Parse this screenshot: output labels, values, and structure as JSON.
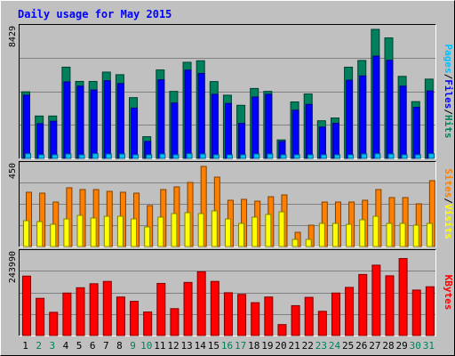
{
  "chart_data": {
    "type": "bar",
    "title": "Daily usage for May 2015",
    "colors": {
      "background": "#c0c0c0",
      "title": "#0000ff",
      "hits": "#00805c",
      "files": "#0000ff",
      "pages": "#00c0ff",
      "visits": "#ffff00",
      "sites": "#ff8000",
      "kbytes": "#ff0000",
      "weekday_label": "#000000",
      "weekend_label": "#00805c"
    },
    "categories": [
      "1",
      "2",
      "3",
      "4",
      "5",
      "6",
      "7",
      "8",
      "9",
      "10",
      "11",
      "12",
      "13",
      "14",
      "15",
      "16",
      "17",
      "18",
      "19",
      "20",
      "21",
      "22",
      "23",
      "24",
      "25",
      "26",
      "27",
      "28",
      "29",
      "30",
      "31"
    ],
    "weekend_days": [
      "2",
      "3",
      "9",
      "10",
      "16",
      "17",
      "23",
      "24",
      "30",
      "31"
    ],
    "panels": [
      {
        "id": "hits",
        "scale_label": "8429",
        "ymax": 8429,
        "axis_labels": [
          {
            "text": "Pages",
            "color": "#00c0ff"
          },
          {
            "text": "/",
            "color": "#000000"
          },
          {
            "text": "Files",
            "color": "#0000ff"
          },
          {
            "text": "/",
            "color": "#000000"
          },
          {
            "text": "Hits",
            "color": "#00805c"
          }
        ],
        "series": [
          {
            "name": "Hits",
            "values": [
              4350,
              2770,
              2770,
              5960,
              5030,
              5030,
              5640,
              5470,
              3970,
              1420,
              5780,
              4380,
              6280,
              6380,
              5020,
              4130,
              3470,
              4570,
              4380,
              1210,
              3690,
              4210,
              2460,
              2640,
              5960,
              6400,
              8429,
              7870,
              5360,
              3710,
              5180
            ]
          },
          {
            "name": "Files",
            "values": [
              4130,
              2270,
              2430,
              5000,
              4720,
              4470,
              5080,
              4890,
              3290,
              1110,
              5140,
              3620,
              5770,
              5550,
              4190,
              3590,
              2290,
              4010,
              4190,
              1110,
              3150,
              3530,
              2050,
              2290,
              5110,
              5390,
              6680,
              6410,
              4720,
              3340,
              4410
            ]
          },
          {
            "name": "Pages",
            "values": [
              310,
              240,
              240,
              290,
              240,
              310,
              290,
              290,
              240,
              240,
              290,
              240,
              310,
              290,
              240,
              240,
              240,
              290,
              290,
              240,
              240,
              240,
              240,
              240,
              240,
              290,
              310,
              290,
              240,
              240,
              310
            ]
          }
        ]
      },
      {
        "id": "visits",
        "scale_label": "450",
        "ymax": 450,
        "axis_labels": [
          {
            "text": "Sites",
            "color": "#ff8000"
          },
          {
            "text": "/",
            "color": "#000000"
          },
          {
            "text": "Visits",
            "color": "#ffff00"
          }
        ],
        "series": [
          {
            "name": "Sites",
            "values": [
              305,
              300,
              250,
              330,
              320,
              320,
              310,
              305,
              300,
              230,
              320,
              335,
              360,
              450,
              390,
              260,
              265,
              255,
              280,
              290,
              80,
              120,
              250,
              250,
              250,
              260,
              320,
              275,
              275,
              240,
              370
            ]
          },
          {
            "name": "Visits",
            "values": [
              145,
              140,
              125,
              155,
              175,
              160,
              170,
              170,
              155,
              110,
              165,
              185,
              190,
              185,
              200,
              155,
              130,
              165,
              180,
              195,
              40,
              40,
              130,
              130,
              125,
              150,
              170,
              130,
              130,
              120,
              130
            ]
          }
        ]
      },
      {
        "id": "kbytes",
        "scale_label": "243990",
        "ymax": 243990,
        "axis_labels": [
          {
            "text": "KBytes",
            "color": "#ff0000"
          }
        ],
        "series": [
          {
            "name": "KBytes",
            "values": [
              179000,
              112000,
              70000,
              128000,
              144000,
              156000,
              163000,
              116000,
              103000,
              71000,
              157000,
              81000,
              160000,
              192000,
              163000,
              129000,
              124000,
              99000,
              116000,
              33000,
              90000,
              115000,
              73000,
              128000,
              145000,
              184000,
              212000,
              180000,
              232000,
              137000,
              147000
            ]
          }
        ]
      }
    ]
  }
}
